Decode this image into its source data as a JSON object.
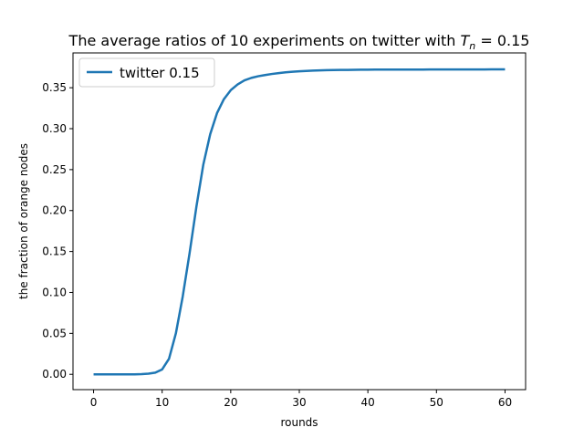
{
  "chart_data": {
    "type": "line",
    "title": "The average ratios of 10 experiments on twitter with T_n = 0.15",
    "title_parts": {
      "prefix": "The average ratios of 10 experiments on twitter with ",
      "var": "T",
      "sub": "n",
      "suffix": " = 0.15"
    },
    "xlabel": "rounds",
    "ylabel": "the fraction of orange nodes",
    "xlim": [
      -3,
      63
    ],
    "ylim": [
      -0.0187,
      0.3925
    ],
    "xticks": [
      0,
      10,
      20,
      30,
      40,
      50,
      60
    ],
    "yticks": [
      0.0,
      0.05,
      0.1,
      0.15,
      0.2,
      0.25,
      0.3,
      0.35
    ],
    "ytick_labels": [
      "0.00",
      "0.05",
      "0.10",
      "0.15",
      "0.20",
      "0.25",
      "0.30",
      "0.35"
    ],
    "legend": {
      "placement": "upper-left"
    },
    "series": [
      {
        "name": "twitter 0.15",
        "color": "#1f77b4",
        "x": [
          0,
          1,
          2,
          3,
          4,
          5,
          6,
          7,
          8,
          9,
          10,
          11,
          12,
          13,
          14,
          15,
          16,
          17,
          18,
          19,
          20,
          21,
          22,
          23,
          24,
          25,
          26,
          27,
          28,
          29,
          30,
          31,
          32,
          33,
          34,
          35,
          36,
          37,
          38,
          39,
          40,
          41,
          42,
          43,
          44,
          45,
          46,
          47,
          48,
          49,
          50,
          51,
          52,
          53,
          54,
          55,
          56,
          57,
          58,
          59,
          60
        ],
        "y": [
          0.0,
          0.0,
          0.0,
          0.0,
          0.0,
          0.0,
          0.0,
          0.0003,
          0.0008,
          0.002,
          0.006,
          0.019,
          0.05,
          0.095,
          0.148,
          0.205,
          0.256,
          0.293,
          0.319,
          0.336,
          0.347,
          0.354,
          0.359,
          0.362,
          0.364,
          0.3655,
          0.3668,
          0.3679,
          0.3688,
          0.3695,
          0.3701,
          0.3705,
          0.3709,
          0.3712,
          0.3714,
          0.3716,
          0.3717,
          0.3718,
          0.3719,
          0.372,
          0.372,
          0.3721,
          0.3721,
          0.3721,
          0.3722,
          0.3722,
          0.3722,
          0.3722,
          0.3722,
          0.3723,
          0.3723,
          0.3723,
          0.3723,
          0.3723,
          0.3723,
          0.3723,
          0.3723,
          0.3723,
          0.3724,
          0.3724,
          0.3724
        ]
      }
    ]
  }
}
